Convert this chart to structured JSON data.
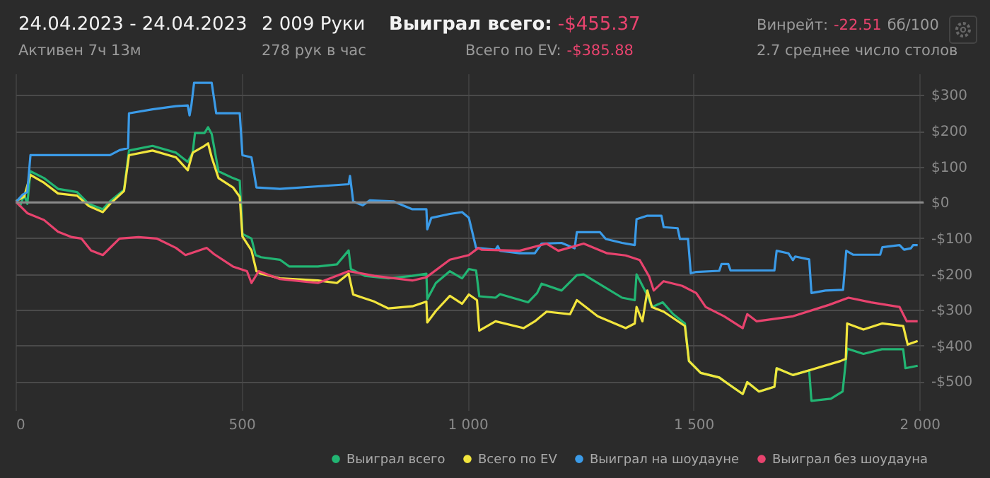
{
  "chart_data": {
    "type": "line",
    "title": "24.04.2023 - 24.04.2023",
    "subtitle": "Активен 7ч 13м",
    "annotations": [
      "2 009 Руки",
      "278 рук в час",
      "Выиграл всего:",
      "-$455.37",
      "Всего по EV:",
      "-$385.88",
      "Винрейт:",
      "-22.51",
      "бб/100",
      "2.7 среднее число столов"
    ],
    "xlim": [
      0,
      2009
    ],
    "ylim": [
      -580,
      360
    ],
    "xticks": [
      0,
      500,
      {
        "value": 1000,
        "label": "1 000"
      },
      {
        "value": 1500,
        "label": "1 500"
      },
      {
        "value": 2000,
        "label": "2 000"
      }
    ],
    "yticks": [
      {
        "value": -500,
        "label": "-$500"
      },
      {
        "value": -400,
        "label": "-$400"
      },
      {
        "value": -300,
        "label": "-$300"
      },
      {
        "value": -200,
        "label": "-$200"
      },
      {
        "value": -100,
        "label": "-$100"
      },
      {
        "value": 0,
        "label": "$0"
      },
      {
        "value": 100,
        "label": "$100"
      },
      {
        "value": 200,
        "label": "$200"
      },
      {
        "value": 300,
        "label": "$300"
      }
    ],
    "grid": true,
    "legend": "bottom",
    "marker": "none",
    "line_style": "solid",
    "ref_lines": [
      {
        "axis": "y",
        "value": 0,
        "color": "#8a8a8a"
      }
    ],
    "series": [
      {
        "name": "Выиграл всего",
        "color": "#22b573",
        "x": [
          0,
          10,
          19,
          26,
          33,
          63,
          94,
          136,
          162,
          193,
          209,
          240,
          251,
          303,
          355,
          381,
          392,
          397,
          418,
          426,
          434,
          449,
          481,
          496,
          502,
          522,
          531,
          543,
          585,
          606,
          669,
          711,
          737,
          742,
          773,
          825,
          878,
          909,
          911,
          930,
          961,
          988,
          1003,
          1019,
          1026,
          1062,
          1072,
          1134,
          1154,
          1164,
          1208,
          1242,
          1257,
          1299,
          1342,
          1370,
          1374,
          1398,
          1408,
          1432,
          1455,
          1481,
          1490,
          1516,
          1557,
          1578,
          1609,
          1619,
          1645,
          1679,
          1684,
          1720,
          1756,
          1761,
          1804,
          1830,
          1840,
          1876,
          1917,
          1964,
          1969,
          1996
        ],
        "values": [
          5,
          -10,
          22,
          -4,
          87,
          68,
          38,
          29,
          -4,
          -19,
          3,
          35,
          145,
          158,
          139,
          113,
          139,
          194,
          194,
          210,
          191,
          87,
          68,
          61,
          -88,
          -101,
          -147,
          -153,
          -160,
          -179,
          -179,
          -173,
          -134,
          -186,
          -205,
          -212,
          -205,
          -199,
          -270,
          -225,
          -192,
          -212,
          -186,
          -190,
          -262,
          -266,
          -256,
          -279,
          -253,
          -227,
          -246,
          -203,
          -201,
          -233,
          -266,
          -273,
          -201,
          -259,
          -292,
          -279,
          -312,
          -338,
          -443,
          -476,
          -489,
          -508,
          -535,
          -502,
          -528,
          -515,
          -463,
          -482,
          -469,
          -554,
          -548,
          -528,
          -408,
          -423,
          -410,
          -410,
          -463,
          -456
        ]
      },
      {
        "name": "Всего по EV",
        "color": "#f2e53d",
        "x": [
          0,
          19,
          33,
          63,
          94,
          136,
          162,
          193,
          209,
          240,
          251,
          303,
          355,
          381,
          392,
          418,
          426,
          434,
          449,
          481,
          496,
          502,
          522,
          533,
          543,
          585,
          669,
          711,
          737,
          747,
          794,
          825,
          878,
          909,
          911,
          930,
          961,
          988,
          1003,
          1021,
          1026,
          1062,
          1124,
          1149,
          1175,
          1227,
          1242,
          1288,
          1350,
          1370,
          1374,
          1387,
          1398,
          1408,
          1434,
          1481,
          1490,
          1516,
          1557,
          1578,
          1609,
          1619,
          1645,
          1679,
          1684,
          1720,
          1756,
          1825,
          1837,
          1840,
          1876,
          1917,
          1964,
          1974,
          1996
        ],
        "values": [
          3,
          16,
          77,
          55,
          25,
          19,
          -10,
          -27,
          -4,
          32,
          132,
          145,
          126,
          90,
          139,
          158,
          165,
          126,
          68,
          42,
          16,
          -95,
          -134,
          -192,
          -199,
          -212,
          -218,
          -225,
          -199,
          -257,
          -277,
          -296,
          -290,
          -277,
          -335,
          -303,
          -261,
          -283,
          -257,
          -273,
          -358,
          -332,
          -351,
          -332,
          -305,
          -312,
          -273,
          -318,
          -351,
          -338,
          -292,
          -332,
          -246,
          -292,
          -305,
          -345,
          -443,
          -476,
          -489,
          -508,
          -535,
          -502,
          -528,
          -515,
          -463,
          -482,
          -469,
          -443,
          -437,
          -338,
          -355,
          -338,
          -345,
          -397,
          -387
        ]
      },
      {
        "name": "Выиграл на шоудауне",
        "color": "#3b9be8",
        "x": [
          0,
          16,
          26,
          33,
          209,
          230,
          249,
          251,
          303,
          355,
          381,
          385,
          389,
          395,
          434,
          444,
          496,
          502,
          522,
          533,
          585,
          669,
          737,
          740,
          747,
          768,
          784,
          836,
          878,
          909,
          911,
          920,
          961,
          988,
          1003,
          1019,
          1029,
          1062,
          1067,
          1072,
          1115,
          1149,
          1164,
          1208,
          1237,
          1242,
          1293,
          1306,
          1342,
          1370,
          1374,
          1398,
          1429,
          1434,
          1465,
          1470,
          1488,
          1494,
          1506,
          1557,
          1562,
          1577,
          1582,
          1679,
          1684,
          1710,
          1720,
          1725,
          1756,
          1761,
          1792,
          1831,
          1838,
          1853,
          1913,
          1918,
          1956,
          1966,
          1981,
          1986,
          1996
        ],
        "values": [
          0,
          22,
          29,
          132,
          132,
          146,
          152,
          249,
          260,
          269,
          271,
          243,
          271,
          334,
          334,
          249,
          249,
          132,
          126,
          42,
          38,
          45,
          51,
          74,
          3,
          -8,
          6,
          3,
          -19,
          -19,
          -75,
          -43,
          -32,
          -27,
          -43,
          -127,
          -128,
          -132,
          -122,
          -135,
          -142,
          -142,
          -115,
          -113,
          -128,
          -83,
          -83,
          -102,
          -113,
          -119,
          -47,
          -37,
          -37,
          -69,
          -72,
          -102,
          -102,
          -198,
          -194,
          -191,
          -172,
          -172,
          -190,
          -190,
          -135,
          -142,
          -161,
          -151,
          -159,
          -253,
          -246,
          -244,
          -135,
          -146,
          -146,
          -125,
          -119,
          -132,
          -128,
          -119,
          -119
        ]
      },
      {
        "name": "Выиграл без шоудауна",
        "color": "#e8436e",
        "x": [
          0,
          26,
          63,
          94,
          125,
          146,
          167,
          193,
          230,
          272,
          313,
          355,
          376,
          423,
          439,
          481,
          512,
          522,
          538,
          585,
          669,
          737,
          794,
          878,
          909,
          961,
          1003,
          1024,
          1031,
          1115,
          1175,
          1201,
          1257,
          1309,
          1350,
          1381,
          1402,
          1412,
          1434,
          1475,
          1506,
          1527,
          1568,
          1609,
          1619,
          1640,
          1720,
          1800,
          1843,
          1893,
          1956,
          1972,
          1996
        ],
        "values": [
          3,
          -30,
          -49,
          -82,
          -97,
          -101,
          -134,
          -147,
          -101,
          -97,
          -101,
          -127,
          -147,
          -127,
          -144,
          -179,
          -192,
          -225,
          -192,
          -214,
          -225,
          -192,
          -205,
          -218,
          -209,
          -160,
          -147,
          -127,
          -132,
          -135,
          -115,
          -135,
          -115,
          -142,
          -148,
          -161,
          -207,
          -246,
          -220,
          -233,
          -253,
          -292,
          -318,
          -351,
          -312,
          -332,
          -318,
          -286,
          -266,
          -279,
          -292,
          -332,
          -332
        ]
      }
    ]
  }
}
